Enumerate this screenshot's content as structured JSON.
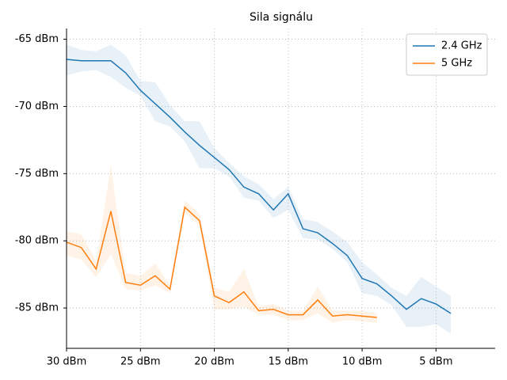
{
  "chart_data": {
    "type": "line",
    "title": "Sila signálu",
    "x": [
      30,
      29,
      28,
      27,
      26,
      25,
      24,
      23,
      22,
      21,
      20,
      19,
      18,
      17,
      16,
      15,
      14,
      13,
      12,
      11,
      10,
      9,
      8,
      7,
      6,
      5,
      4
    ],
    "series": [
      {
        "name": "2.4 GHz",
        "color": "#1f77b4",
        "values": [
          -66.5,
          -66.6,
          -66.6,
          -66.6,
          -67.5,
          -68.8,
          -69.8,
          -70.8,
          -71.9,
          -72.9,
          -73.8,
          -74.7,
          -76.0,
          -76.5,
          -77.7,
          -76.5,
          -79.1,
          -79.4,
          -80.2,
          -81.1,
          -82.8,
          -83.2,
          -84.1,
          -85.1,
          -84.3,
          -84.7,
          -85.4
        ],
        "upper": [
          -65.4,
          -65.8,
          -65.9,
          -65.4,
          -66.2,
          -68.1,
          -68.2,
          -69.9,
          -71.1,
          -71.1,
          -73.1,
          -74.2,
          -75.2,
          -75.8,
          -76.9,
          -76.0,
          -78.4,
          -78.6,
          -79.3,
          -80.1,
          -81.6,
          -82.5,
          -83.5,
          -84.1,
          -82.7,
          -83.4,
          -84.1
        ],
        "lower": [
          -67.7,
          -67.4,
          -67.3,
          -67.8,
          -68.6,
          -69.2,
          -71.1,
          -71.5,
          -72.6,
          -74.6,
          -74.6,
          -75.2,
          -76.8,
          -77.0,
          -78.3,
          -77.7,
          -79.8,
          -79.9,
          -80.6,
          -81.6,
          -83.9,
          -84.1,
          -84.8,
          -86.4,
          -86.4,
          -86.2,
          -86.9
        ]
      },
      {
        "name": "5 GHz",
        "color": "#ff7f0e",
        "values": [
          -80.1,
          -80.5,
          -82.1,
          -77.8,
          -83.1,
          -83.3,
          -82.6,
          -83.6,
          -77.5,
          -78.5,
          -84.1,
          -84.6,
          -83.8,
          -85.2,
          -85.1,
          -85.5,
          -85.5,
          -84.4,
          -85.6,
          -85.5,
          -85.6,
          -85.7,
          null,
          null,
          null,
          null,
          null
        ],
        "upper": [
          -79.3,
          -79.5,
          -81.5,
          -74.4,
          -82.4,
          -82.6,
          -81.7,
          -83.3,
          -77.0,
          -78.0,
          -83.5,
          -83.8,
          -82.1,
          -84.9,
          -84.7,
          -85.2,
          -85.2,
          -83.4,
          -85.2,
          -85.2,
          -85.2,
          -85.4,
          null,
          null,
          null,
          null,
          null
        ],
        "lower": [
          -81.1,
          -81.4,
          -82.7,
          -81.0,
          -83.6,
          -83.7,
          -83.3,
          -83.9,
          -77.9,
          -78.9,
          -85.1,
          -85.1,
          -84.9,
          -85.5,
          -85.5,
          -85.9,
          -85.9,
          -85.4,
          -86.1,
          -85.9,
          -86.0,
          -86.1,
          null,
          null,
          null,
          null,
          null
        ]
      }
    ],
    "xlim": [
      30,
      1
    ],
    "ylim": [
      -88,
      -64.2
    ],
    "xticks": [
      {
        "value": 30,
        "label": "30 dBm"
      },
      {
        "value": 25,
        "label": "25 dBm"
      },
      {
        "value": 20,
        "label": "20 dBm"
      },
      {
        "value": 15,
        "label": "15 dBm"
      },
      {
        "value": 10,
        "label": "10 dBm"
      },
      {
        "value": 5,
        "label": "5 dBm"
      }
    ],
    "yticks": [
      {
        "value": -65,
        "label": "-65 dBm"
      },
      {
        "value": -70,
        "label": "-70 dBm"
      },
      {
        "value": -75,
        "label": "-75 dBm"
      },
      {
        "value": -80,
        "label": "-80 dBm"
      },
      {
        "value": -85,
        "label": "-85 dBm"
      }
    ],
    "grid": true,
    "legend": "upper right"
  }
}
